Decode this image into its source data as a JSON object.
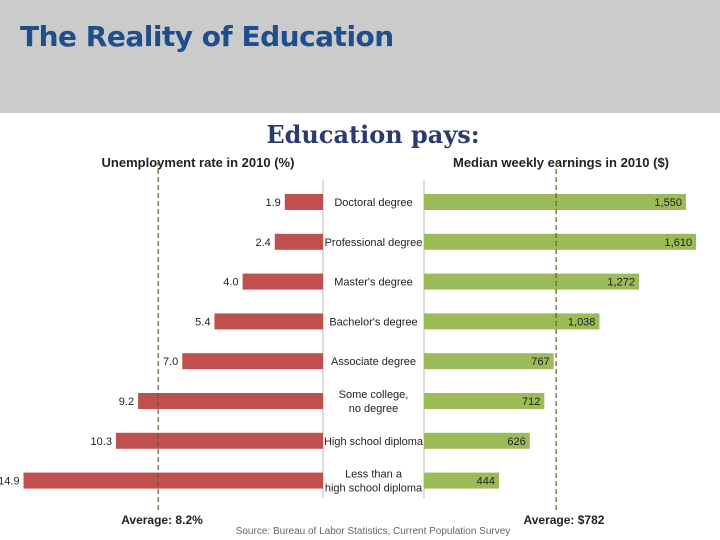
{
  "slide": {
    "title": "The Reality of Education"
  },
  "colors": {
    "header_bg": "#cbcbcb",
    "title": "#1f4e8c",
    "chart_title": "#2e3a6e",
    "unemployment_bar": "#c0504d",
    "earnings_bar": "#9bbb59",
    "average_line": "#6b5a2e"
  },
  "chart_data": {
    "type": "bar",
    "title": "Education pays:",
    "source": "Source: Bureau of Labor Statistics, Current Population Survey",
    "categories": [
      [
        "Doctoral degree"
      ],
      [
        "Professional degree"
      ],
      [
        "Master's degree"
      ],
      [
        "Bachelor's degree"
      ],
      [
        "Associate degree"
      ],
      [
        "Some college,",
        "no degree"
      ],
      [
        "High school diploma"
      ],
      [
        "Less than a",
        "high school diploma"
      ]
    ],
    "series": [
      {
        "name": "Unemployment rate in 2010 (%)",
        "values": [
          1.9,
          2.4,
          4.0,
          5.4,
          7.0,
          9.2,
          10.3,
          14.9
        ],
        "labels": [
          "1.9",
          "2.4",
          "4.0",
          "5.4",
          "7.0",
          "9.2",
          "10.3",
          "14.9"
        ],
        "average": 8.2,
        "average_label": "Average: 8.2%",
        "direction": "left"
      },
      {
        "name": "Median weekly earnings in 2010 ($)",
        "values": [
          1550,
          1610,
          1272,
          1038,
          767,
          712,
          626,
          444
        ],
        "labels": [
          "1,550",
          "1,610",
          "1,272",
          "1,038",
          "767",
          "712",
          "626",
          "444"
        ],
        "average": 782,
        "average_label": "Average: $782",
        "direction": "right"
      }
    ]
  }
}
